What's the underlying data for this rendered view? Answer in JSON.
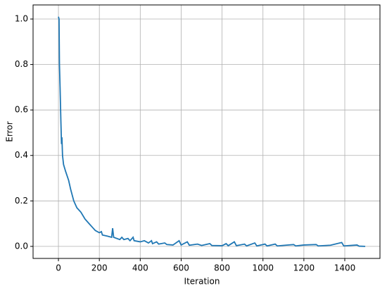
{
  "chart_data": {
    "type": "line",
    "x_label": "Iteration",
    "y_label": "Error",
    "x": [
      0,
      3,
      5,
      8,
      12,
      15,
      17,
      20,
      25,
      35,
      50,
      60,
      75,
      90,
      110,
      130,
      150,
      165,
      170,
      180,
      200,
      210,
      215,
      240,
      260,
      265,
      270,
      300,
      310,
      320,
      340,
      350,
      365,
      370,
      400,
      420,
      440,
      455,
      460,
      480,
      490,
      520,
      530,
      560,
      590,
      600,
      630,
      640,
      680,
      700,
      740,
      750,
      800,
      820,
      830,
      860,
      870,
      910,
      920,
      960,
      970,
      1010,
      1020,
      1060,
      1070,
      1110,
      1150,
      1160,
      1200,
      1260,
      1270,
      1330,
      1385,
      1395,
      1460,
      1470,
      1500
    ],
    "series": [
      {
        "name": "Error",
        "color": "#1f77b4",
        "values": [
          1.01,
          1.0,
          0.8,
          0.7,
          0.55,
          0.45,
          0.48,
          0.4,
          0.36,
          0.33,
          0.29,
          0.25,
          0.2,
          0.17,
          0.15,
          0.12,
          0.1,
          0.085,
          0.08,
          0.07,
          0.06,
          0.065,
          0.05,
          0.045,
          0.04,
          0.08,
          0.04,
          0.03,
          0.04,
          0.03,
          0.035,
          0.025,
          0.04,
          0.025,
          0.02,
          0.025,
          0.015,
          0.025,
          0.012,
          0.02,
          0.01,
          0.015,
          0.008,
          0.006,
          0.025,
          0.006,
          0.02,
          0.005,
          0.01,
          0.004,
          0.012,
          0.004,
          0.003,
          0.012,
          0.003,
          0.02,
          0.003,
          0.01,
          0.002,
          0.015,
          0.002,
          0.01,
          0.002,
          0.01,
          0.002,
          0.005,
          0.008,
          0.002,
          0.006,
          0.008,
          0.002,
          0.005,
          0.017,
          0.002,
          0.006,
          0.001,
          0.0
        ]
      }
    ],
    "xlim": [
      -124,
      1572
    ],
    "ylim": [
      -0.053,
      1.062
    ],
    "xticks": [
      0,
      200,
      400,
      600,
      800,
      1000,
      1200,
      1400
    ],
    "yticks": [
      {
        "value": 0,
        "label": "0.0"
      },
      0.2,
      0.4,
      0.6,
      0.8,
      {
        "value": 1,
        "label": "1.0"
      }
    ],
    "grid": true
  }
}
